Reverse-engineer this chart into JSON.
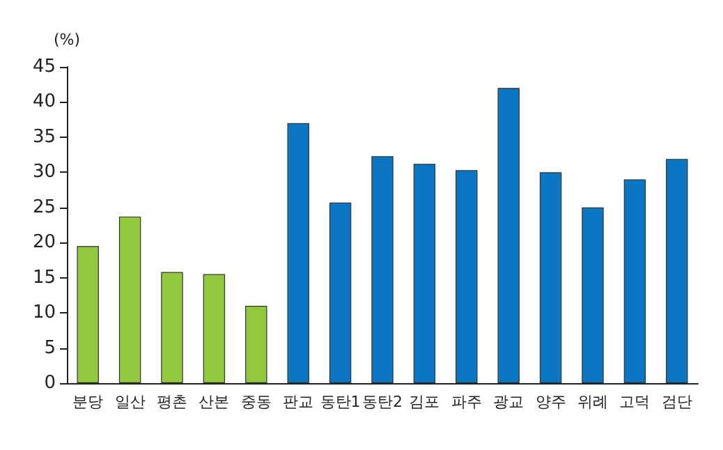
{
  "chart_data": {
    "type": "bar",
    "ylabel": "(%)",
    "categories": [
      "분당",
      "일산",
      "평촌",
      "산본",
      "중동",
      "판교",
      "동탄1",
      "동탄2",
      "김포",
      "파주",
      "광교",
      "양주",
      "위례",
      "고덕",
      "검단"
    ],
    "values": [
      19.5,
      23.7,
      15.8,
      15.5,
      11,
      37,
      25.7,
      32.3,
      31.2,
      30.3,
      42,
      30,
      25,
      29,
      31.9
    ],
    "colors": [
      "#92c83e",
      "#92c83e",
      "#92c83e",
      "#92c83e",
      "#92c83e",
      "#0b77c4",
      "#0b77c4",
      "#0b77c4",
      "#0b77c4",
      "#0b77c4",
      "#0b77c4",
      "#0b77c4",
      "#0b77c4",
      "#0b77c4",
      "#0b77c4"
    ],
    "ylim": [
      0,
      45
    ],
    "yticks": [
      0,
      5,
      10,
      15,
      20,
      25,
      30,
      35,
      40,
      45
    ],
    "grid": false
  }
}
